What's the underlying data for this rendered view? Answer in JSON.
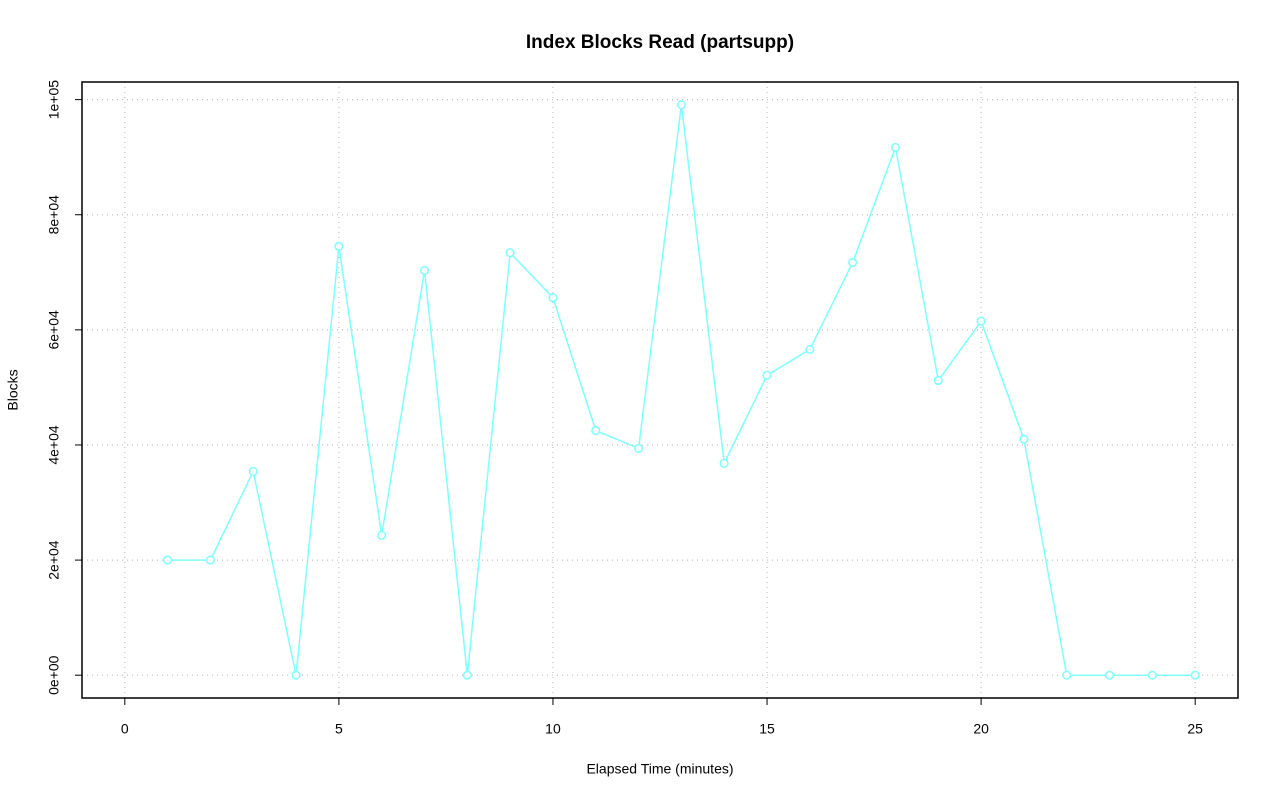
{
  "chart_data": {
    "type": "line",
    "title": "Index Blocks Read (partsupp)",
    "x_label": "Elapsed Time (minutes)",
    "y_label": "Blocks",
    "x": [
      1,
      2,
      3,
      4,
      5,
      6,
      7,
      8,
      9,
      10,
      11,
      12,
      13,
      14,
      15,
      16,
      17,
      18,
      19,
      20,
      21,
      22,
      23,
      24,
      25
    ],
    "values": [
      20000,
      20000,
      35400,
      0,
      74500,
      24300,
      70300,
      0,
      73400,
      65600,
      42500,
      39400,
      99100,
      36800,
      52100,
      56600,
      71700,
      91700,
      51200,
      61500,
      41000,
      0,
      0,
      0,
      0
    ],
    "color": "#7fffff",
    "xlim": [
      -1,
      26
    ],
    "ylim": [
      -3960,
      103060
    ],
    "xticks": [
      0,
      5,
      10,
      15,
      20,
      25
    ],
    "yticks": [
      {
        "value": 0,
        "label": "0e+00"
      },
      {
        "value": 20000,
        "label": "2e+04"
      },
      {
        "value": 40000,
        "label": "4e+04"
      },
      {
        "value": 60000,
        "label": "6e+04"
      },
      {
        "value": 80000,
        "label": "8e+04"
      },
      {
        "value": 100000,
        "label": "1e+05"
      }
    ],
    "grid": true
  }
}
